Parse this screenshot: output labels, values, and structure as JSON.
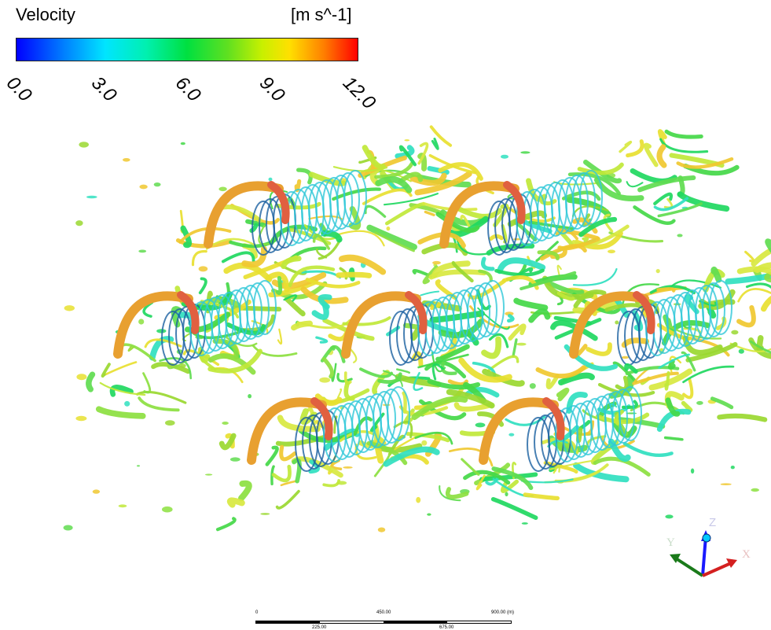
{
  "legend": {
    "title": "Velocity",
    "unit": "[m s^-1]",
    "ticks": [
      "0.0",
      "3.0",
      "6.0",
      "9.0",
      "12.0"
    ]
  },
  "axes": {
    "x": "X",
    "y": "Y",
    "z": "Z"
  },
  "scale_bar": {
    "top_labels": [
      "0",
      "450.00",
      "900.00 (m)"
    ],
    "bottom_labels": [
      "225.00",
      "675.00"
    ]
  },
  "colors": {
    "vmin": "#0000ff",
    "v3": "#00e5ff",
    "v6": "#00e040",
    "v9": "#ffe000",
    "vmax": "#ff0000",
    "x_axis": "#d42020",
    "y_axis": "#1a7a1a",
    "z_axis": "#1a1aff"
  },
  "turbine_rows": [
    {
      "row": 1,
      "count": 2
    },
    {
      "row": 2,
      "count": 3
    },
    {
      "row": 3,
      "count": 2
    }
  ]
}
